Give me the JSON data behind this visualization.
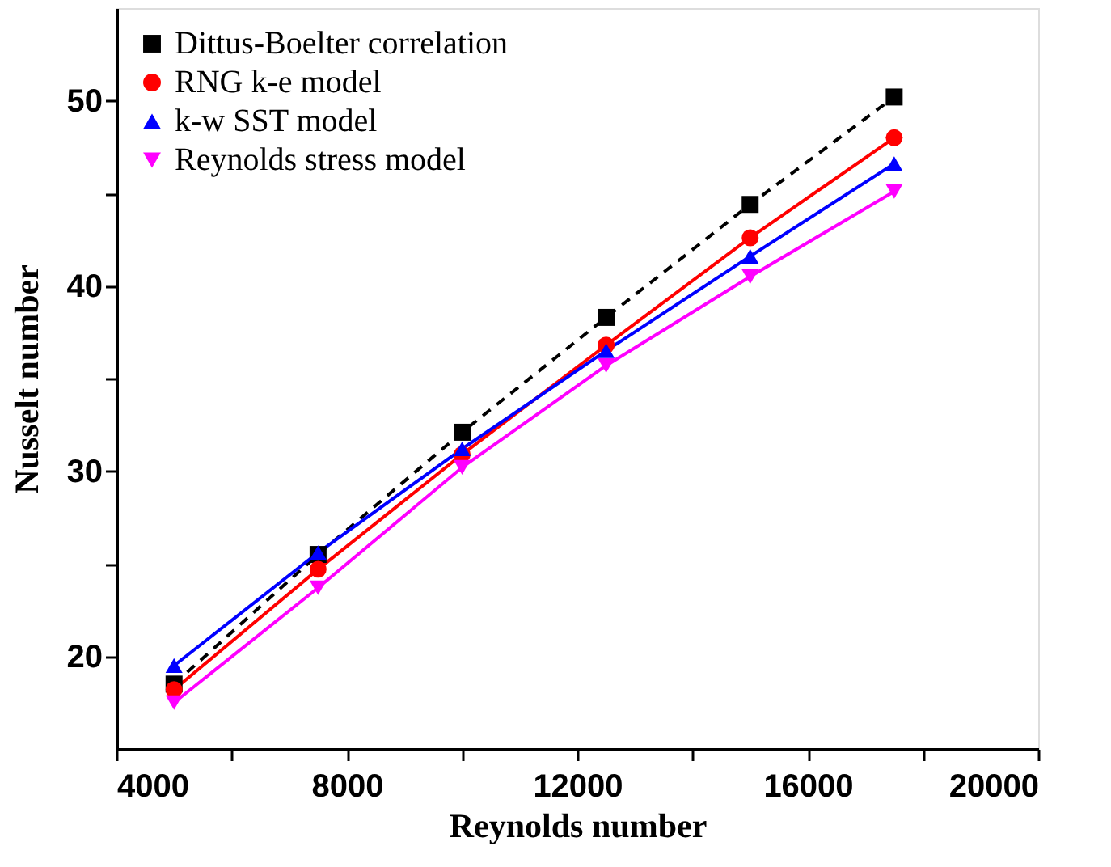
{
  "chart_data": {
    "type": "line",
    "xlabel": "Reynolds number",
    "ylabel": "Nusselt number",
    "x": [
      5000,
      7500,
      10000,
      12500,
      15000,
      17500
    ],
    "xlim": [
      4000,
      20000
    ],
    "ylim": [
      15,
      55
    ],
    "xticks": [
      4000,
      {
        "value": 6000,
        "label": null
      },
      8000,
      {
        "value": 10000,
        "label": null
      },
      12000,
      {
        "value": 14000,
        "label": null
      },
      16000,
      {
        "value": 18000,
        "label": null
      },
      20000
    ],
    "yticks": [
      20,
      {
        "value": 25,
        "label": null
      },
      30,
      {
        "value": 35,
        "label": null
      },
      40,
      {
        "value": 45,
        "label": null
      },
      50
    ],
    "grid": false,
    "legend": "top left",
    "series": [
      {
        "name": "Dittus-Boelter correlation",
        "color": "#000000",
        "marker": "square",
        "line_style": "dashed",
        "values": [
          18.5,
          25.5,
          32.1,
          38.3,
          44.4,
          50.2
        ]
      },
      {
        "name": "RNG k-e model",
        "color": "#ff0000",
        "marker": "circle",
        "line_style": "solid",
        "values": [
          18.2,
          24.7,
          30.9,
          36.8,
          42.6,
          48.0
        ]
      },
      {
        "name": "k-w SST model",
        "color": "#0000ff",
        "marker": "triangle",
        "line_style": "solid",
        "values": [
          19.5,
          25.6,
          31.2,
          36.5,
          41.6,
          46.6
        ]
      },
      {
        "name": "Reynolds stress model",
        "color": "#ff00ff",
        "marker": "triangle-down",
        "line_style": "solid",
        "values": [
          17.5,
          23.7,
          30.2,
          35.7,
          40.5,
          45.1
        ]
      }
    ]
  }
}
